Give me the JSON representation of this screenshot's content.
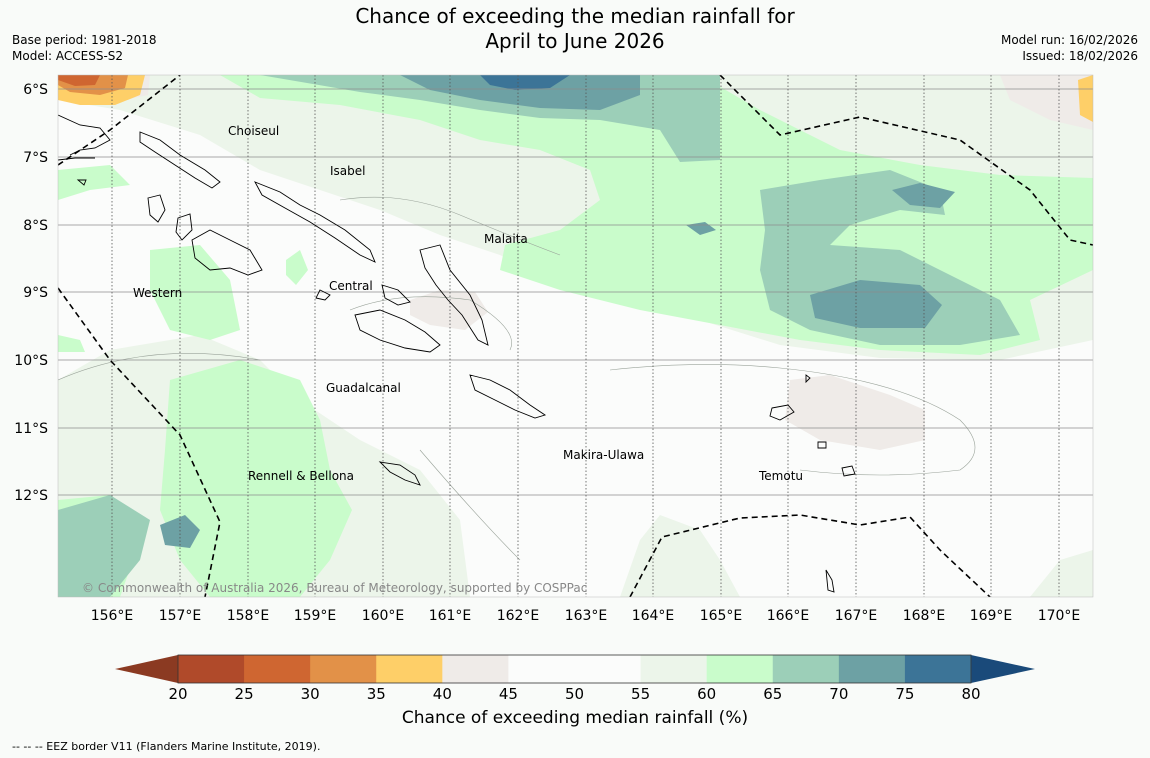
{
  "title": {
    "line1": "Chance of exceeding the median rainfall for",
    "line2": "April to June 2026"
  },
  "meta_left": {
    "base_period": "Base period: 1981-2018",
    "model": "Model: ACCESS-S2"
  },
  "meta_right": {
    "model_run": "Model run: 16/02/2026",
    "issued": "Issued: 18/02/2026"
  },
  "map": {
    "lat_labels": [
      "6°S",
      "7°S",
      "8°S",
      "9°S",
      "10°S",
      "11°S",
      "12°S"
    ],
    "lon_labels": [
      "156°E",
      "157°E",
      "158°E",
      "159°E",
      "160°E",
      "161°E",
      "162°E",
      "163°E",
      "164°E",
      "165°E",
      "166°E",
      "167°E",
      "168°E",
      "169°E",
      "170°E"
    ],
    "regions": [
      "Choiseul",
      "Isabel",
      "Malaita",
      "Western",
      "Central",
      "Guadalcanal",
      "Makira-Ulawa",
      "Rennell & Bellona",
      "Temotu"
    ],
    "copyright": "© Commonwealth of Australia 2026, Bureau of Meteorology, supported by COSPPac"
  },
  "colorbar": {
    "ticks": [
      "20",
      "25",
      "30",
      "35",
      "40",
      "45",
      "50",
      "55",
      "60",
      "65",
      "70",
      "75",
      "80"
    ],
    "label": "Chance of exceeding median rainfall (%)",
    "colors": [
      "#8b3a22",
      "#b04a2a",
      "#cf6631",
      "#e29148",
      "#fecf68",
      "#efebe8",
      "#fbfcfb",
      "#fbfcfb",
      "#ecf5ea",
      "#c9fccb",
      "#9ccfb8",
      "#6da1a4",
      "#3c7497",
      "#1a4a7a"
    ]
  },
  "footer": "--  --  -- EEZ border V11 (Flanders Marine Institute, 2019)."
}
